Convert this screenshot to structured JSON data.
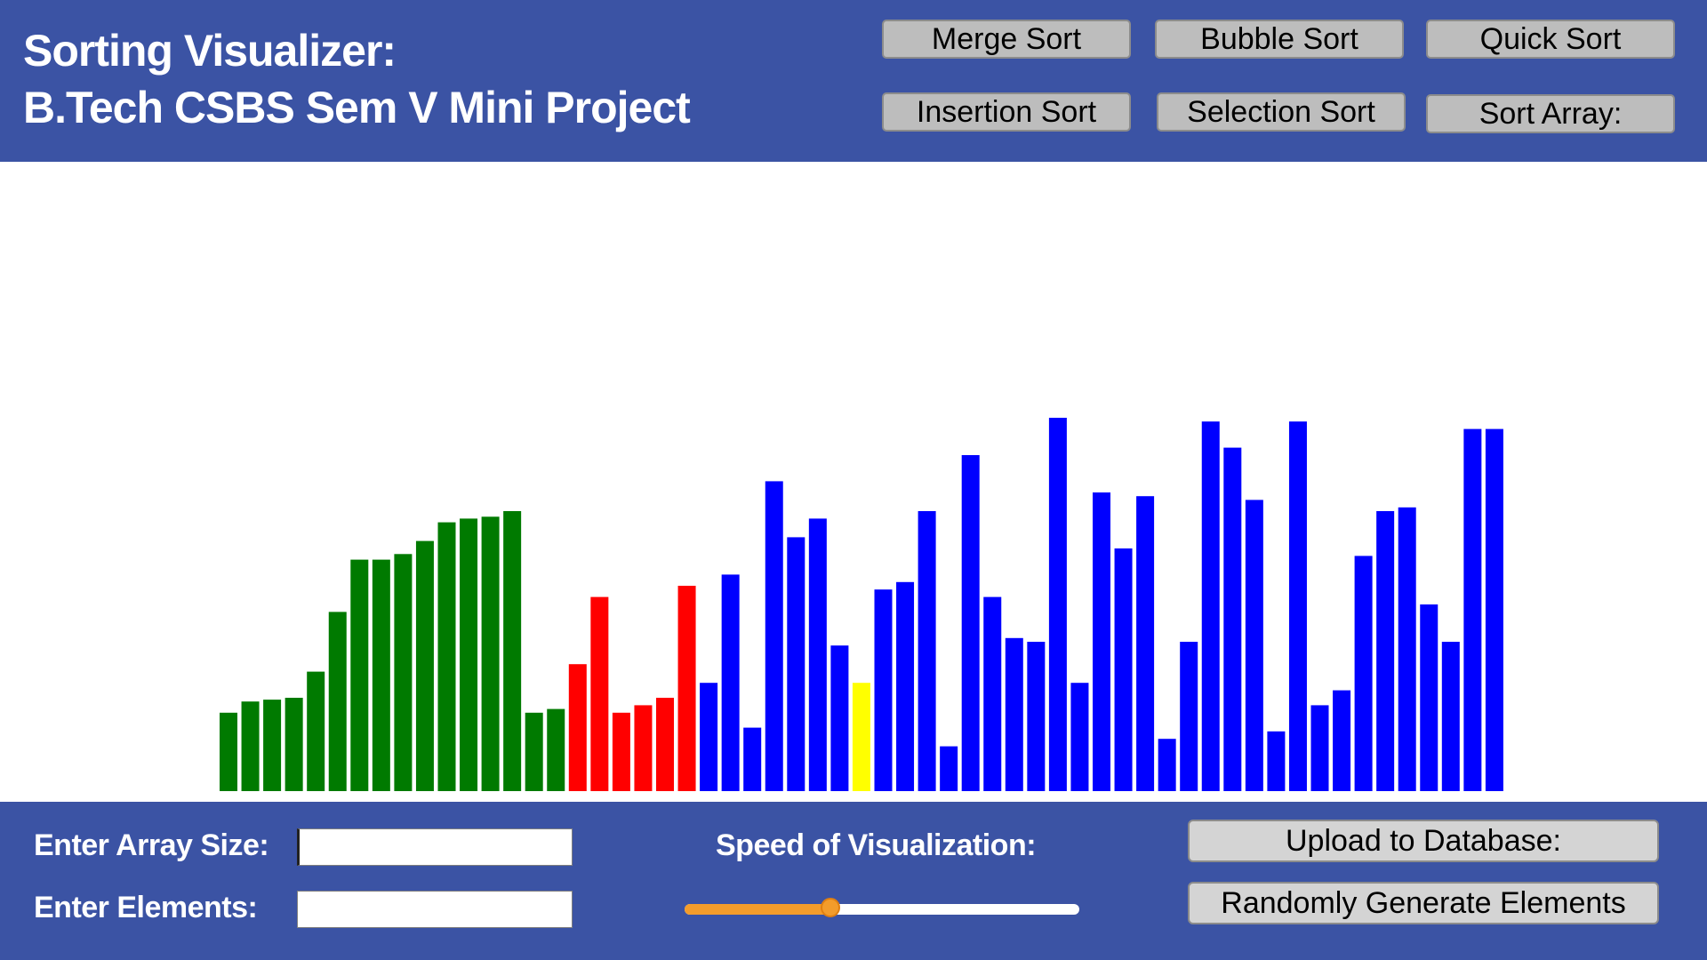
{
  "header": {
    "title_line1": "Sorting Visualizer:",
    "title_line2": "B.Tech CSBS Sem V Mini Project",
    "buttons": [
      {
        "label": "Merge Sort"
      },
      {
        "label": "Bubble Sort"
      },
      {
        "label": "Quick Sort"
      },
      {
        "label": "Insertion Sort"
      },
      {
        "label": "Selection Sort"
      },
      {
        "label": "Sort Array:"
      }
    ]
  },
  "colors": {
    "header_bg": "#3b53a4",
    "sorted": "#007a00",
    "comparing": "#ff0000",
    "unsorted": "#0000ff",
    "current": "#ffff00"
  },
  "chart_data": {
    "type": "bar",
    "ylim": [
      0,
      100
    ],
    "values": [
      21,
      24,
      24.5,
      25,
      32,
      48,
      62,
      62,
      63.5,
      67,
      72,
      73,
      73.5,
      75,
      21,
      22,
      34,
      52,
      21,
      23,
      25,
      55,
      29,
      58,
      17,
      83,
      68,
      73,
      39,
      29,
      54,
      56,
      75,
      12,
      90,
      52,
      41,
      40,
      100,
      29,
      80,
      65,
      79,
      14,
      40,
      99,
      92,
      78,
      16,
      99,
      23,
      27,
      63,
      75,
      76,
      50,
      40,
      97,
      97
    ],
    "states": [
      "sorted",
      "sorted",
      "sorted",
      "sorted",
      "sorted",
      "sorted",
      "sorted",
      "sorted",
      "sorted",
      "sorted",
      "sorted",
      "sorted",
      "sorted",
      "sorted",
      "sorted",
      "sorted",
      "comparing",
      "comparing",
      "comparing",
      "comparing",
      "comparing",
      "comparing",
      "unsorted",
      "unsorted",
      "unsorted",
      "unsorted",
      "unsorted",
      "unsorted",
      "unsorted",
      "current",
      "unsorted",
      "unsorted",
      "unsorted",
      "unsorted",
      "unsorted",
      "unsorted",
      "unsorted",
      "unsorted",
      "unsorted",
      "unsorted",
      "unsorted",
      "unsorted",
      "unsorted",
      "unsorted",
      "unsorted",
      "unsorted",
      "unsorted",
      "unsorted",
      "unsorted",
      "unsorted",
      "unsorted",
      "unsorted",
      "unsorted",
      "unsorted",
      "unsorted",
      "unsorted",
      "unsorted",
      "unsorted",
      "unsorted"
    ]
  },
  "footer": {
    "array_size_label": "Enter Array Size:",
    "array_size_value": "",
    "elements_label": "Enter Elements:",
    "elements_value": "",
    "speed_label": "Speed of Visualization:",
    "speed_value": 0.37,
    "upload_button": "Upload to Database:",
    "random_button": "Randomly Generate Elements"
  }
}
